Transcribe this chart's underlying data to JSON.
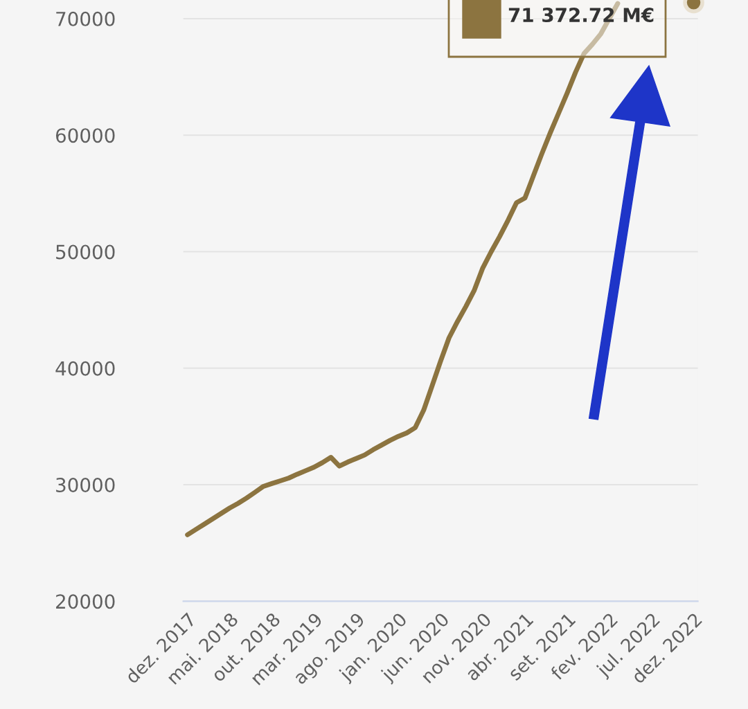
{
  "chart_data": {
    "type": "line",
    "categories": [
      "dez. 2017",
      null,
      null,
      null,
      null,
      "mai. 2018",
      null,
      null,
      null,
      null,
      "out. 2018",
      null,
      null,
      null,
      null,
      "mar. 2019",
      null,
      null,
      null,
      null,
      "ago. 2019",
      null,
      null,
      null,
      null,
      "jan. 2020",
      null,
      null,
      null,
      null,
      "jun. 2020",
      null,
      null,
      null,
      null,
      "nov. 2020",
      null,
      null,
      null,
      null,
      "abr. 2021",
      null,
      null,
      null,
      null,
      "set. 2021",
      null,
      null,
      null,
      null,
      "fev. 2022",
      null,
      null,
      null,
      null,
      "jul. 2022",
      null,
      null,
      null,
      null,
      "dez. 2022"
    ],
    "series": [
      {
        "color": "#8c7440",
        "values": [
          25700,
          26160,
          26620,
          27080,
          27540,
          28000,
          28400,
          28850,
          29350,
          29860,
          30100,
          30330,
          30570,
          30900,
          31200,
          31500,
          31900,
          32350,
          31600,
          31950,
          32250,
          32550,
          33000,
          33400,
          33800,
          34150,
          34450,
          34900,
          36400,
          38500,
          40600,
          42600,
          44000,
          45300,
          46700,
          48600,
          50000,
          51300,
          52700,
          54200,
          54600,
          56500,
          58400,
          60200,
          61900,
          63600,
          65400,
          67000,
          67800,
          68700,
          70000,
          71300,
          null,
          null,
          null,
          null,
          null,
          null,
          null,
          null,
          71370
        ]
      }
    ],
    "ylim": [
      20000,
      71600
    ],
    "yticks": [
      20000,
      30000,
      40000,
      50000,
      60000,
      70000
    ],
    "grid": "y",
    "annotations": [
      "71 372.72 M€"
    ]
  }
}
